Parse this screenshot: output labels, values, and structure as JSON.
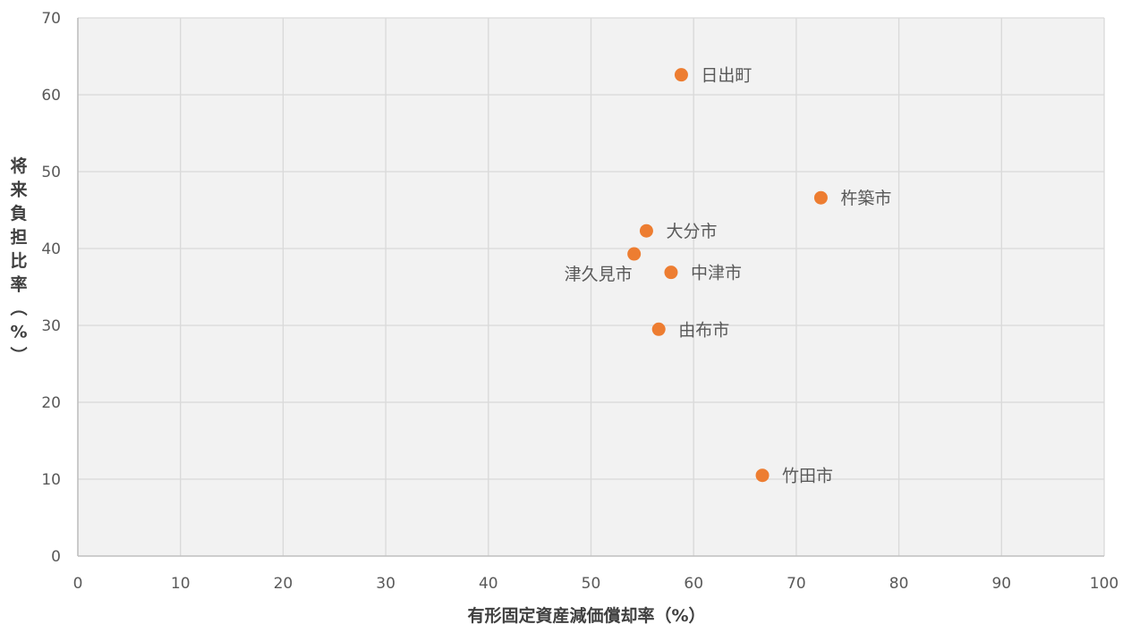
{
  "chart_data": {
    "type": "scatter",
    "title": "",
    "xlabel": "有形固定資産減価償却率（%）",
    "ylabel": "将来負担比率（%）",
    "xlim": [
      0,
      100
    ],
    "ylim": [
      0,
      70
    ],
    "x_ticks": [
      0,
      10,
      20,
      30,
      40,
      50,
      60,
      70,
      80,
      90,
      100
    ],
    "y_ticks": [
      0,
      10,
      20,
      30,
      40,
      50,
      60,
      70
    ],
    "grid": true,
    "legend": "none",
    "colors": {
      "marker": "#ED7D31",
      "plot_background": "#F2F2F2",
      "grid": "#D9D9D9",
      "axis": "#BFBFBF"
    },
    "points": [
      {
        "label": "日出町",
        "x": 58.8,
        "y": 62.6,
        "label_side": "right"
      },
      {
        "label": "杵築市",
        "x": 72.4,
        "y": 46.6,
        "label_side": "right"
      },
      {
        "label": "大分市",
        "x": 55.4,
        "y": 42.3,
        "label_side": "right"
      },
      {
        "label": "津久見市",
        "x": 54.2,
        "y": 39.3,
        "label_side": "left"
      },
      {
        "label": "中津市",
        "x": 57.8,
        "y": 36.9,
        "label_side": "right"
      },
      {
        "label": "由布市",
        "x": 56.6,
        "y": 29.5,
        "label_side": "right"
      },
      {
        "label": "竹田市",
        "x": 66.7,
        "y": 10.5,
        "label_side": "right"
      }
    ]
  }
}
